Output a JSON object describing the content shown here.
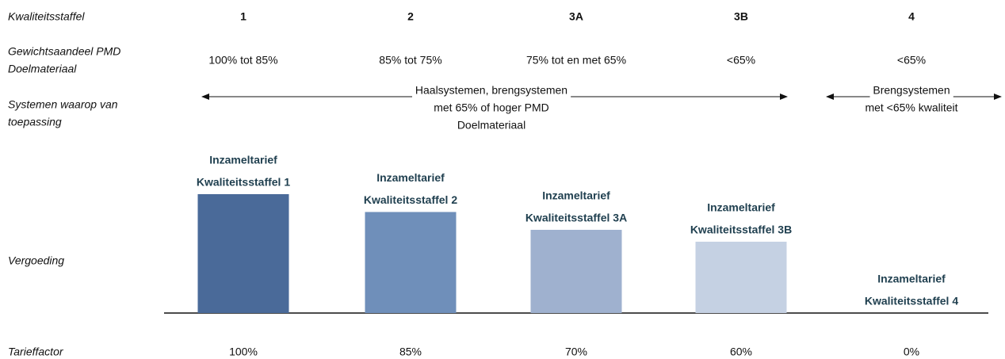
{
  "chart_data": {
    "type": "bar",
    "row_labels": {
      "category": "Kwaliteitsstaffel",
      "share": [
        "Gewichtsaandeel PMD",
        "Doelmateriaal"
      ],
      "systems": [
        "Systemen waarop van",
        "toepassing"
      ],
      "bars": "Vergoeding",
      "factor": "Tarieffactor"
    },
    "categories": [
      "1",
      "2",
      "3A",
      "3B",
      "4"
    ],
    "shares": [
      "100% tot 85%",
      "85% tot 75%",
      "75% tot en met 65%",
      "<65%",
      "<65%"
    ],
    "systems": [
      [
        "Haalsystemen, brengsystemen",
        "met 65% of hoger PMD",
        "Doelmateriaal"
      ],
      [
        "Brengsystemen",
        "met <65% kwaliteit"
      ]
    ],
    "bar_labels": [
      [
        "Inzameltarief",
        "Kwaliteitsstaffel 1"
      ],
      [
        "Inzameltarief",
        "Kwaliteitsstaffel 2"
      ],
      [
        "Inzameltarief",
        "Kwaliteitsstaffel 3A"
      ],
      [
        "Inzameltarief",
        "Kwaliteitsstaffel 3B"
      ],
      [
        "Inzameltarief",
        "Kwaliteitsstaffel 4"
      ]
    ],
    "values": [
      100,
      85,
      70,
      60,
      0
    ],
    "value_labels": [
      "100%",
      "85%",
      "70%",
      "60%",
      "0%"
    ],
    "colors": [
      "#4a6a99",
      "#6f8fba",
      "#9fb1cf",
      "#c5d1e3",
      "#c5d1e3"
    ]
  }
}
